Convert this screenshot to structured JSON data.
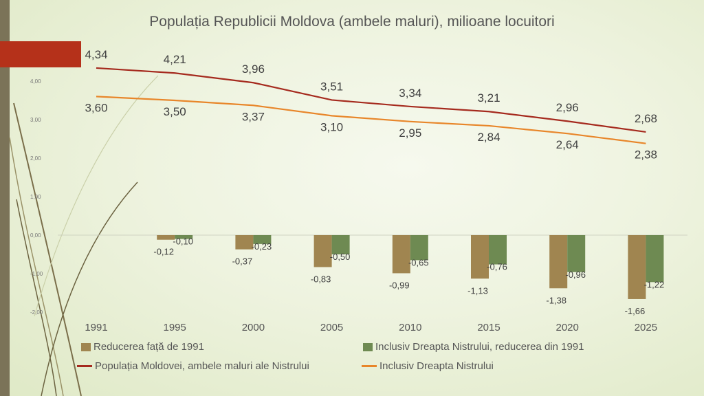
{
  "chart_data": {
    "type": "bar+line",
    "title": "Populația Republicii Moldova (ambele maluri), milioane locuitori",
    "categories": [
      "1991",
      "1995",
      "2000",
      "2005",
      "2010",
      "2015",
      "2020",
      "2025"
    ],
    "y_ticks": [
      "4,00",
      "3,00",
      "2,00",
      "1,00",
      "0,00",
      "-1,00",
      "-2,00"
    ],
    "y_tick_values": [
      4,
      3,
      2,
      1,
      0,
      -1,
      -2
    ],
    "ylim": [
      -2,
      5
    ],
    "bar_series": [
      {
        "name": "Reducerea față de 1991",
        "color": "#a08550",
        "values": [
          null,
          -0.12,
          -0.37,
          -0.83,
          -0.99,
          -1.13,
          -1.38,
          -1.66
        ],
        "labels": [
          "",
          "-0,12",
          "-0,37",
          "-0,83",
          "-0,99",
          "-1,13",
          "-1,38",
          "-1,66"
        ]
      },
      {
        "name": "Inclusiv Dreapta Nistrului, reducerea din 1991",
        "color": "#6e8a52",
        "values": [
          null,
          -0.1,
          -0.23,
          -0.5,
          -0.65,
          -0.76,
          -0.96,
          -1.22
        ],
        "labels": [
          "",
          "-0,10",
          "-0,23",
          "-0,50",
          "-0,65",
          "-0,76",
          "-0,96",
          "-1,22"
        ]
      }
    ],
    "line_series": [
      {
        "name": "Populația Moldovei, ambele maluri ale Nistrului",
        "color": "#a52a1e",
        "values": [
          4.34,
          4.21,
          3.96,
          3.51,
          3.34,
          3.21,
          2.96,
          2.68
        ],
        "labels": [
          "4,34",
          "4,21",
          "3,96",
          "3,51",
          "3,34",
          "3,21",
          "2,96",
          "2,68"
        ]
      },
      {
        "name": "Inclusiv Dreapta Nistrului",
        "color": "#e8862a",
        "values": [
          3.6,
          3.5,
          3.37,
          3.1,
          2.95,
          2.84,
          2.64,
          2.38
        ],
        "labels": [
          "3,60",
          "3,50",
          "3,37",
          "3,10",
          "2,95",
          "2,84",
          "2,64",
          "2,38"
        ]
      }
    ],
    "legend_position": "bottom",
    "grid": false
  },
  "legend": [
    {
      "label": "Reducerea față de 1991"
    },
    {
      "label": "Inclusiv Dreapta Nistrului, reducerea din 1991"
    },
    {
      "label": "Populația Moldovei, ambele maluri ale Nistrului"
    },
    {
      "label": "Inclusiv Dreapta Nistrului"
    }
  ]
}
